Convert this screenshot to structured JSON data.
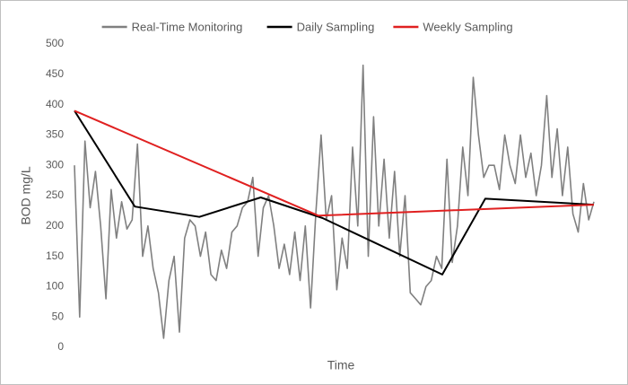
{
  "chart_data": {
    "type": "line",
    "x_label": "Time",
    "y_label": "BOD mg/L",
    "xlim": [
      0,
      99
    ],
    "ylim": [
      0,
      500
    ],
    "yticks": [
      0,
      50,
      100,
      150,
      200,
      250,
      300,
      350,
      400,
      450,
      500
    ],
    "grid": false,
    "legend": "top",
    "series": [
      {
        "name": "Real-Time Monitoring",
        "color": "#808080",
        "x": [
          0,
          1,
          2,
          3,
          4,
          5,
          6,
          7,
          8,
          9,
          10,
          11,
          12,
          13,
          14,
          15,
          16,
          17,
          18,
          19,
          20,
          21,
          22,
          23,
          24,
          25,
          26,
          27,
          28,
          29,
          30,
          31,
          32,
          33,
          34,
          35,
          36,
          37,
          38,
          39,
          40,
          41,
          42,
          43,
          44,
          45,
          46,
          47,
          48,
          49,
          50,
          51,
          52,
          53,
          54,
          55,
          56,
          57,
          58,
          59,
          60,
          61,
          62,
          63,
          64,
          65,
          66,
          67,
          68,
          69,
          70,
          71,
          72,
          73,
          74,
          75,
          76,
          77,
          78,
          79,
          80,
          81,
          82,
          83,
          84,
          85,
          86,
          87,
          88,
          89,
          90,
          91,
          92,
          93,
          94,
          95,
          96,
          97,
          98,
          99
        ],
        "values": [
          300,
          50,
          340,
          230,
          290,
          200,
          80,
          260,
          180,
          240,
          195,
          210,
          335,
          150,
          200,
          130,
          90,
          15,
          110,
          150,
          25,
          180,
          210,
          200,
          150,
          190,
          120,
          110,
          160,
          130,
          190,
          200,
          230,
          240,
          280,
          150,
          230,
          250,
          200,
          130,
          170,
          120,
          190,
          110,
          200,
          65,
          220,
          350,
          210,
          250,
          95,
          180,
          130,
          330,
          200,
          465,
          150,
          380,
          200,
          310,
          180,
          290,
          150,
          250,
          90,
          80,
          70,
          100,
          110,
          150,
          130,
          310,
          140,
          200,
          330,
          250,
          445,
          350,
          280,
          300,
          300,
          260,
          350,
          300,
          270,
          350,
          280,
          320,
          250,
          300,
          415,
          280,
          360,
          250,
          330,
          220,
          190,
          270,
          210,
          240
        ]
      },
      {
        "name": "Daily Sampling",
        "color": "#000000",
        "x": [
          0,
          11.5,
          23.8,
          35.5,
          47.3,
          70.1,
          78.3,
          99
        ],
        "values": [
          390,
          232,
          215,
          247,
          213,
          120,
          245,
          235
        ]
      },
      {
        "name": "Weekly Sampling",
        "color": "#e02020",
        "x": [
          0,
          46.5,
          99
        ],
        "values": [
          390,
          217,
          235
        ]
      }
    ]
  }
}
